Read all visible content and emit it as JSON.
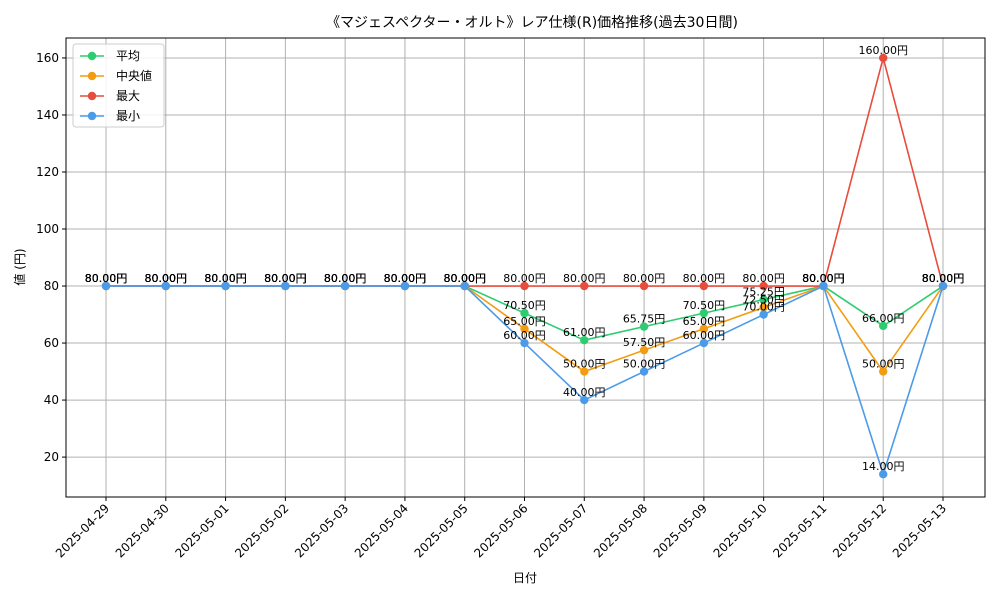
{
  "chart_data": {
    "type": "line",
    "title": "《マジェスペクター・オルト》レア仕様(R)価格推移(過去30日間)",
    "xlabel": "日付",
    "ylabel": "値 (円)",
    "categories": [
      "2025-04-29",
      "2025-04-30",
      "2025-05-01",
      "2025-05-02",
      "2025-05-03",
      "2025-05-04",
      "2025-05-05",
      "2025-05-06",
      "2025-05-07",
      "2025-05-08",
      "2025-05-09",
      "2025-05-10",
      "2025-05-11",
      "2025-05-12",
      "2025-05-13"
    ],
    "ylim": [
      6,
      167
    ],
    "yticks": [
      20,
      40,
      60,
      80,
      100,
      120,
      140,
      160
    ],
    "grid": true,
    "legend_position": "top-left",
    "series": [
      {
        "name": "平均",
        "color": "#2ecc71",
        "values": [
          80,
          80,
          80,
          80,
          80,
          80,
          80,
          70.5,
          61,
          65.75,
          70.5,
          75.25,
          80,
          66,
          80
        ],
        "labels": [
          "80.00円",
          "80.00円",
          "80.00円",
          "80.00円",
          "80.00円",
          "80.00円",
          "80.00円",
          "70.50円",
          "61.00円",
          "65.75円",
          "70.50円",
          "75.25円",
          "80.00円",
          "66.00円",
          "80.00円"
        ]
      },
      {
        "name": "中央値",
        "color": "#f39c12",
        "values": [
          80,
          80,
          80,
          80,
          80,
          80,
          80,
          65,
          50,
          57.5,
          65,
          72.5,
          80,
          50,
          80
        ],
        "labels": [
          "80.00円",
          "80.00円",
          "80.00円",
          "80.00円",
          "80.00円",
          "80.00円",
          "80.00円",
          "65.00円",
          "50.00円",
          "57.50円",
          "65.00円",
          "72.50円",
          "80.00円",
          "50.00円",
          "80.00円"
        ]
      },
      {
        "name": "最大",
        "color": "#e74c3c",
        "values": [
          80,
          80,
          80,
          80,
          80,
          80,
          80,
          80,
          80,
          80,
          80,
          80,
          80,
          160,
          80
        ],
        "labels": [
          "80.00円",
          "80.00円",
          "80.00円",
          "80.00円",
          "80.00円",
          "80.00円",
          "80.00円",
          "80.00円",
          "80.00円",
          "80.00円",
          "80.00円",
          "80.00円",
          "80.00円",
          "160.00円",
          "80.00円"
        ]
      },
      {
        "name": "最小",
        "color": "#4c9be8",
        "values": [
          80,
          80,
          80,
          80,
          80,
          80,
          80,
          60,
          40,
          50,
          60,
          70,
          80,
          14,
          80
        ],
        "labels": [
          "80.00円",
          "80.00円",
          "80.00円",
          "80.00円",
          "80.00円",
          "80.00円",
          "80.00円",
          "60.00円",
          "40.00円",
          "50.00円",
          "60.00円",
          "70.00円",
          "80.00円",
          "14.00円",
          "80.00円"
        ]
      }
    ]
  }
}
